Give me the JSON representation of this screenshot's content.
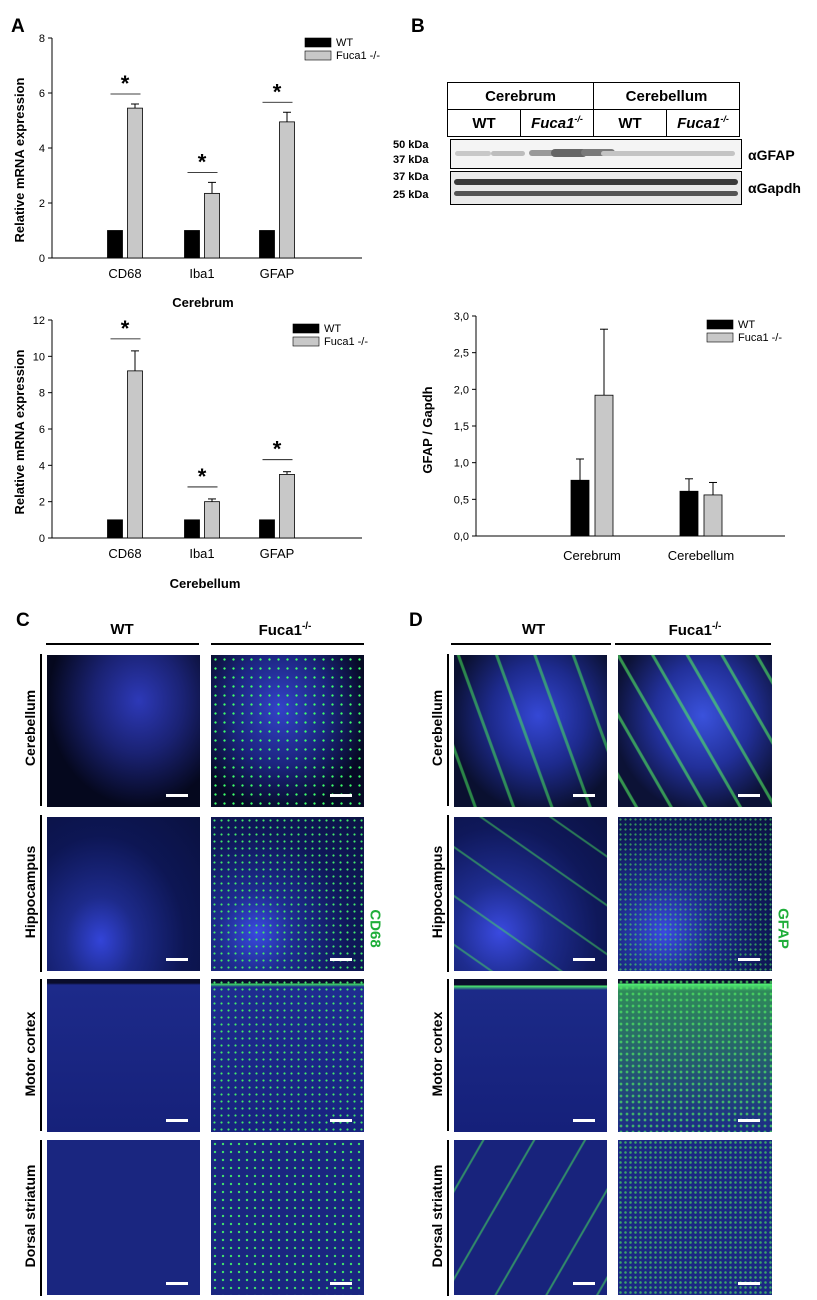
{
  "panels": {
    "a": "A",
    "b": "B",
    "c": "C",
    "d": "D"
  },
  "chart_data": [
    {
      "type": "bar",
      "title": "",
      "xlabel": "Cerebrum",
      "ylabel": "Relative mRNA expression",
      "categories": [
        "CD68",
        "Iba1",
        "GFAP"
      ],
      "ylim": [
        0,
        8
      ],
      "yticks": [
        "0",
        "2",
        "4",
        "6",
        "8"
      ],
      "legend": "top-right",
      "series": [
        {
          "name": "WT",
          "values": [
            1,
            1,
            1
          ],
          "errors": [
            0,
            0,
            0
          ],
          "color": "#000000"
        },
        {
          "name": "Fuca1 -/-",
          "values": [
            5.45,
            2.35,
            4.95
          ],
          "errors": [
            0.15,
            0.4,
            0.35
          ],
          "color": "#c8c8c8"
        }
      ],
      "significance": [
        "*",
        "*",
        "*"
      ]
    },
    {
      "type": "bar",
      "title": "",
      "xlabel": "Cerebellum",
      "ylabel": "Relative mRNA expression",
      "categories": [
        "CD68",
        "Iba1",
        "GFAP"
      ],
      "ylim": [
        0,
        12
      ],
      "yticks": [
        "0",
        "2",
        "4",
        "6",
        "8",
        "10",
        "12"
      ],
      "legend": "top-right",
      "series": [
        {
          "name": "WT",
          "values": [
            1,
            1,
            1
          ],
          "errors": [
            0,
            0,
            0
          ],
          "color": "#000000"
        },
        {
          "name": "Fuca1 -/-",
          "values": [
            9.2,
            2.0,
            3.5
          ],
          "errors": [
            1.1,
            0.15,
            0.15
          ],
          "color": "#c8c8c8"
        }
      ],
      "significance": [
        "*",
        "*",
        "*"
      ]
    },
    {
      "type": "bar",
      "title": "",
      "xlabel": "",
      "ylabel": "GFAP / Gapdh",
      "categories": [
        "Cerebrum",
        "Cerebellum"
      ],
      "ylim": [
        0,
        3
      ],
      "yticks": [
        "0,0",
        "0,5",
        "1,0",
        "1,5",
        "2,0",
        "2,5",
        "3,0"
      ],
      "legend": "top-right",
      "series": [
        {
          "name": "WT",
          "values": [
            0.76,
            0.61
          ],
          "errors": [
            0.29,
            0.17
          ],
          "color": "#000000"
        },
        {
          "name": "Fuca1 -/-",
          "values": [
            1.92,
            0.56
          ],
          "errors": [
            0.9,
            0.17
          ],
          "color": "#c8c8c8"
        }
      ],
      "significance": [
        "",
        ""
      ]
    }
  ],
  "blot": {
    "groups": [
      "Cerebrum",
      "Cerebellum"
    ],
    "lanes": [
      "WT",
      "Fuca1",
      "WT",
      "Fuca1"
    ],
    "lane_sup": "-/-",
    "markers": [
      "50 kDa",
      "37 kDa",
      "37 kDa",
      "25 kDa"
    ],
    "antibodies": [
      "αGFAP",
      "αGapdh"
    ]
  },
  "histology": {
    "col_wt": "WT",
    "col_ko": "Fuca1",
    "col_ko_sup": "-/-",
    "rows": [
      "Cerebellum",
      "Hippocampus",
      "Motor cortex",
      "Dorsal striatum"
    ],
    "stain_c": "CD68",
    "stain_d": "GFAP"
  }
}
